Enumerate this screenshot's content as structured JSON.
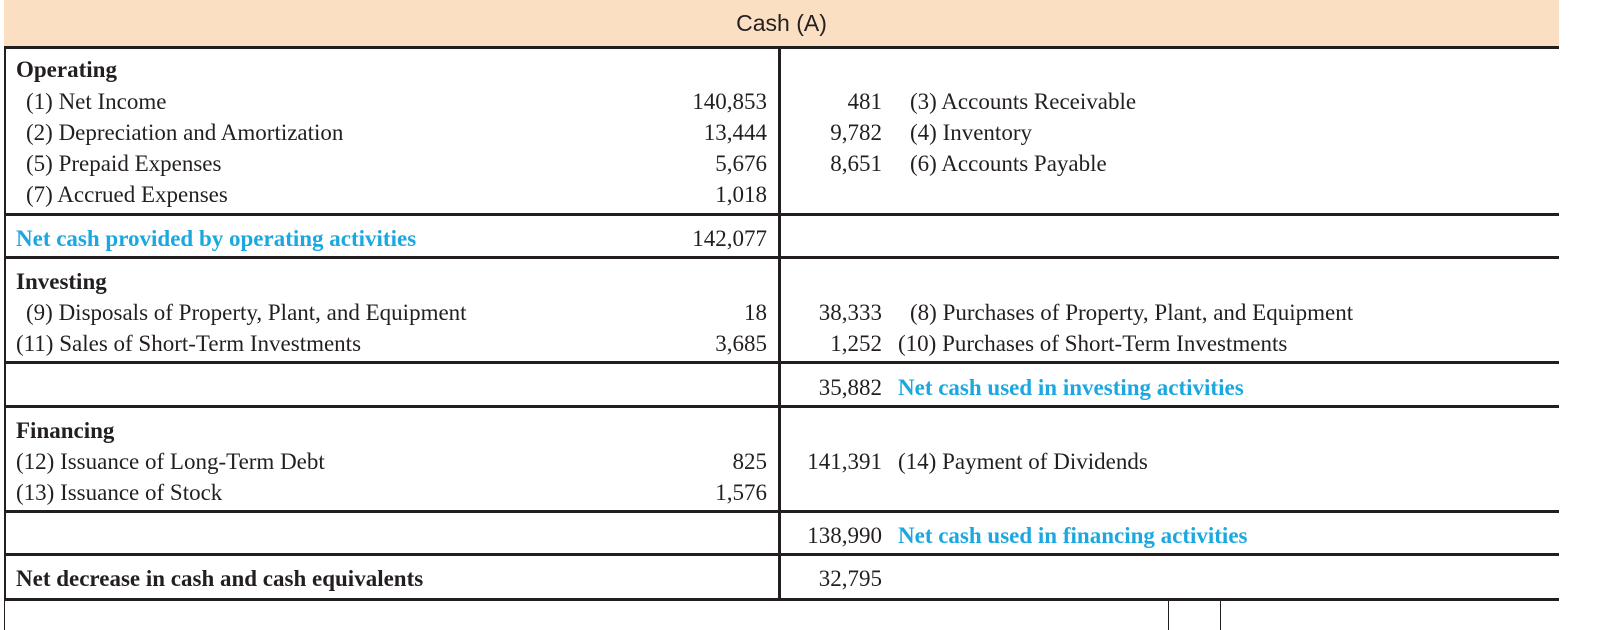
{
  "account_title": "Cash (A)",
  "operating": {
    "heading": "Operating",
    "debits": [
      {
        "label": "(1) Net Income",
        "amount": "140,853"
      },
      {
        "label": "(2) Depreciation and Amortization",
        "amount": "13,444"
      },
      {
        "label": "(5) Prepaid Expenses",
        "amount": "5,676"
      },
      {
        "label": "(7) Accrued Expenses",
        "amount": "1,018"
      }
    ],
    "credits": [
      {
        "amount": "481",
        "label": "(3) Accounts Receivable"
      },
      {
        "amount": "9,782",
        "label": "(4) Inventory"
      },
      {
        "amount": "8,651",
        "label": "(6) Accounts Payable"
      }
    ],
    "subtotal_label": "Net cash provided by operating activities",
    "subtotal_amount": "142,077"
  },
  "investing": {
    "heading": "Investing",
    "debits": [
      {
        "label": "(9) Disposals of Property, Plant, and Equipment",
        "amount": "18"
      },
      {
        "label": "(11) Sales of Short-Term Investments",
        "amount": "3,685"
      }
    ],
    "credits": [
      {
        "amount": "38,333",
        "label": "(8) Purchases of Property, Plant, and Equipment"
      },
      {
        "amount": "1,252",
        "label": "(10) Purchases of Short-Term Investments"
      }
    ],
    "subtotal_amount": "35,882",
    "subtotal_label": "Net cash used in investing activities"
  },
  "financing": {
    "heading": "Financing",
    "debits": [
      {
        "label": "(12) Issuance of Long-Term Debt",
        "amount": "825"
      },
      {
        "label": "(13) Issuance of Stock",
        "amount": "1,576"
      }
    ],
    "credits": [
      {
        "amount": "141,391",
        "label": "(14) Payment of Dividends"
      }
    ],
    "subtotal_amount": "138,990",
    "subtotal_label": "Net cash used in financing activities"
  },
  "net_change": {
    "label": "Net decrease in cash and cash equivalents",
    "amount": "32,795"
  },
  "colors": {
    "header_fill": "#fbdfc3",
    "accent": "#1ba7e0",
    "rule": "#231f20"
  }
}
